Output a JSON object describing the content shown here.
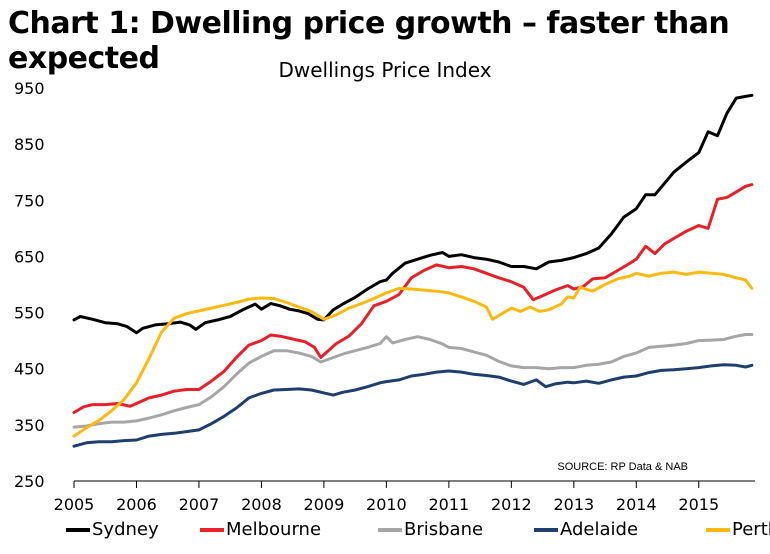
{
  "header": {
    "title": "Chart 1: Dwelling price growth – faster than expected"
  },
  "chart_data": {
    "type": "line",
    "title": "Dwellings Price Index",
    "source": "SOURCE: RP Data & NAB",
    "xlabel": "",
    "ylabel": "",
    "xlim": [
      2005,
      2015.9
    ],
    "ylim": [
      250,
      950
    ],
    "y_ticks": [
      "950",
      "850",
      "750",
      "650",
      "550",
      "450",
      "350",
      "250"
    ],
    "x_ticks": [
      "2005",
      "2006",
      "2007",
      "2008",
      "2009",
      "2010",
      "2011",
      "2012",
      "2013",
      "2014",
      "2015"
    ],
    "grid": false,
    "legend_position": "bottom",
    "series": [
      {
        "name": "Sydney",
        "color": "#000000",
        "points": [
          [
            2005.0,
            537
          ],
          [
            2005.1,
            543
          ],
          [
            2005.3,
            538
          ],
          [
            2005.5,
            532
          ],
          [
            2005.7,
            530
          ],
          [
            2005.85,
            525
          ],
          [
            2006.0,
            514
          ],
          [
            2006.1,
            522
          ],
          [
            2006.3,
            528
          ],
          [
            2006.5,
            530
          ],
          [
            2006.7,
            533
          ],
          [
            2006.85,
            528
          ],
          [
            2006.95,
            520
          ],
          [
            2007.1,
            532
          ],
          [
            2007.3,
            537
          ],
          [
            2007.5,
            543
          ],
          [
            2007.7,
            555
          ],
          [
            2007.9,
            565
          ],
          [
            2008.0,
            556
          ],
          [
            2008.15,
            566
          ],
          [
            2008.3,
            562
          ],
          [
            2008.45,
            556
          ],
          [
            2008.6,
            553
          ],
          [
            2008.75,
            548
          ],
          [
            2008.9,
            538
          ],
          [
            2009.0,
            537
          ],
          [
            2009.15,
            555
          ],
          [
            2009.3,
            565
          ],
          [
            2009.5,
            577
          ],
          [
            2009.7,
            592
          ],
          [
            2009.9,
            605
          ],
          [
            2010.0,
            608
          ],
          [
            2010.1,
            620
          ],
          [
            2010.3,
            638
          ],
          [
            2010.5,
            645
          ],
          [
            2010.7,
            652
          ],
          [
            2010.9,
            657
          ],
          [
            2011.0,
            650
          ],
          [
            2011.2,
            653
          ],
          [
            2011.4,
            648
          ],
          [
            2011.6,
            645
          ],
          [
            2011.8,
            640
          ],
          [
            2012.0,
            632
          ],
          [
            2012.2,
            632
          ],
          [
            2012.4,
            628
          ],
          [
            2012.6,
            640
          ],
          [
            2012.8,
            643
          ],
          [
            2013.0,
            648
          ],
          [
            2013.2,
            655
          ],
          [
            2013.4,
            665
          ],
          [
            2013.6,
            690
          ],
          [
            2013.8,
            720
          ],
          [
            2014.0,
            735
          ],
          [
            2014.15,
            760
          ],
          [
            2014.3,
            760
          ],
          [
            2014.45,
            780
          ],
          [
            2014.6,
            800
          ],
          [
            2014.8,
            818
          ],
          [
            2015.0,
            835
          ],
          [
            2015.15,
            872
          ],
          [
            2015.3,
            865
          ],
          [
            2015.45,
            905
          ],
          [
            2015.6,
            932
          ],
          [
            2015.75,
            935
          ],
          [
            2015.85,
            937
          ]
        ]
      },
      {
        "name": "Melbourne",
        "color": "#e8202a",
        "points": [
          [
            2005.0,
            372
          ],
          [
            2005.15,
            382
          ],
          [
            2005.3,
            386
          ],
          [
            2005.5,
            386
          ],
          [
            2005.7,
            388
          ],
          [
            2005.9,
            383
          ],
          [
            2006.0,
            388
          ],
          [
            2006.2,
            398
          ],
          [
            2006.4,
            403
          ],
          [
            2006.6,
            410
          ],
          [
            2006.8,
            413
          ],
          [
            2007.0,
            413
          ],
          [
            2007.2,
            428
          ],
          [
            2007.4,
            445
          ],
          [
            2007.6,
            470
          ],
          [
            2007.8,
            492
          ],
          [
            2008.0,
            500
          ],
          [
            2008.15,
            510
          ],
          [
            2008.3,
            508
          ],
          [
            2008.5,
            503
          ],
          [
            2008.7,
            498
          ],
          [
            2008.85,
            488
          ],
          [
            2008.95,
            470
          ],
          [
            2009.05,
            480
          ],
          [
            2009.2,
            495
          ],
          [
            2009.4,
            508
          ],
          [
            2009.6,
            530
          ],
          [
            2009.8,
            562
          ],
          [
            2010.0,
            570
          ],
          [
            2010.2,
            582
          ],
          [
            2010.4,
            612
          ],
          [
            2010.6,
            625
          ],
          [
            2010.8,
            635
          ],
          [
            2011.0,
            630
          ],
          [
            2011.2,
            632
          ],
          [
            2011.4,
            628
          ],
          [
            2011.6,
            620
          ],
          [
            2011.8,
            612
          ],
          [
            2012.0,
            605
          ],
          [
            2012.2,
            595
          ],
          [
            2012.35,
            573
          ],
          [
            2012.5,
            580
          ],
          [
            2012.7,
            590
          ],
          [
            2012.9,
            598
          ],
          [
            2013.0,
            592
          ],
          [
            2013.15,
            596
          ],
          [
            2013.3,
            610
          ],
          [
            2013.5,
            612
          ],
          [
            2013.7,
            625
          ],
          [
            2013.9,
            638
          ],
          [
            2014.0,
            645
          ],
          [
            2014.15,
            668
          ],
          [
            2014.3,
            655
          ],
          [
            2014.45,
            672
          ],
          [
            2014.6,
            682
          ],
          [
            2014.8,
            695
          ],
          [
            2015.0,
            705
          ],
          [
            2015.15,
            700
          ],
          [
            2015.3,
            752
          ],
          [
            2015.45,
            755
          ],
          [
            2015.6,
            765
          ],
          [
            2015.75,
            775
          ],
          [
            2015.85,
            778
          ]
        ]
      },
      {
        "name": "Brisbane",
        "color": "#a6a6a6",
        "points": [
          [
            2005.0,
            346
          ],
          [
            2005.2,
            348
          ],
          [
            2005.4,
            352
          ],
          [
            2005.6,
            355
          ],
          [
            2005.8,
            355
          ],
          [
            2006.0,
            357
          ],
          [
            2006.2,
            362
          ],
          [
            2006.4,
            368
          ],
          [
            2006.6,
            375
          ],
          [
            2006.8,
            381
          ],
          [
            2007.0,
            386
          ],
          [
            2007.2,
            400
          ],
          [
            2007.4,
            418
          ],
          [
            2007.6,
            440
          ],
          [
            2007.8,
            460
          ],
          [
            2008.0,
            472
          ],
          [
            2008.2,
            482
          ],
          [
            2008.4,
            482
          ],
          [
            2008.6,
            478
          ],
          [
            2008.8,
            472
          ],
          [
            2008.95,
            462
          ],
          [
            2009.1,
            468
          ],
          [
            2009.3,
            476
          ],
          [
            2009.5,
            482
          ],
          [
            2009.7,
            488
          ],
          [
            2009.9,
            495
          ],
          [
            2010.0,
            507
          ],
          [
            2010.1,
            496
          ],
          [
            2010.3,
            502
          ],
          [
            2010.5,
            507
          ],
          [
            2010.7,
            502
          ],
          [
            2010.9,
            494
          ],
          [
            2011.0,
            488
          ],
          [
            2011.2,
            486
          ],
          [
            2011.4,
            480
          ],
          [
            2011.6,
            474
          ],
          [
            2011.8,
            463
          ],
          [
            2012.0,
            455
          ],
          [
            2012.2,
            452
          ],
          [
            2012.4,
            452
          ],
          [
            2012.6,
            450
          ],
          [
            2012.8,
            452
          ],
          [
            2013.0,
            452
          ],
          [
            2013.2,
            456
          ],
          [
            2013.4,
            458
          ],
          [
            2013.6,
            462
          ],
          [
            2013.8,
            472
          ],
          [
            2014.0,
            478
          ],
          [
            2014.2,
            488
          ],
          [
            2014.4,
            490
          ],
          [
            2014.6,
            492
          ],
          [
            2014.8,
            495
          ],
          [
            2015.0,
            500
          ],
          [
            2015.2,
            501
          ],
          [
            2015.4,
            502
          ],
          [
            2015.6,
            508
          ],
          [
            2015.75,
            511
          ],
          [
            2015.85,
            511
          ]
        ]
      },
      {
        "name": "Adelaide",
        "color": "#1f3f6e",
        "points": [
          [
            2005.0,
            312
          ],
          [
            2005.2,
            318
          ],
          [
            2005.4,
            320
          ],
          [
            2005.6,
            320
          ],
          [
            2005.8,
            322
          ],
          [
            2006.0,
            323
          ],
          [
            2006.2,
            330
          ],
          [
            2006.4,
            333
          ],
          [
            2006.6,
            335
          ],
          [
            2006.8,
            338
          ],
          [
            2007.0,
            341
          ],
          [
            2007.2,
            352
          ],
          [
            2007.4,
            365
          ],
          [
            2007.6,
            380
          ],
          [
            2007.8,
            398
          ],
          [
            2008.0,
            406
          ],
          [
            2008.2,
            412
          ],
          [
            2008.4,
            413
          ],
          [
            2008.6,
            414
          ],
          [
            2008.8,
            412
          ],
          [
            2009.0,
            407
          ],
          [
            2009.15,
            403
          ],
          [
            2009.3,
            408
          ],
          [
            2009.5,
            412
          ],
          [
            2009.7,
            418
          ],
          [
            2009.9,
            425
          ],
          [
            2010.0,
            427
          ],
          [
            2010.2,
            430
          ],
          [
            2010.4,
            437
          ],
          [
            2010.6,
            440
          ],
          [
            2010.8,
            444
          ],
          [
            2011.0,
            446
          ],
          [
            2011.2,
            444
          ],
          [
            2011.4,
            440
          ],
          [
            2011.6,
            438
          ],
          [
            2011.8,
            435
          ],
          [
            2012.0,
            428
          ],
          [
            2012.2,
            422
          ],
          [
            2012.4,
            430
          ],
          [
            2012.55,
            418
          ],
          [
            2012.7,
            423
          ],
          [
            2012.9,
            426
          ],
          [
            2013.0,
            425
          ],
          [
            2013.2,
            428
          ],
          [
            2013.4,
            424
          ],
          [
            2013.6,
            430
          ],
          [
            2013.8,
            435
          ],
          [
            2014.0,
            437
          ],
          [
            2014.2,
            443
          ],
          [
            2014.4,
            447
          ],
          [
            2014.6,
            448
          ],
          [
            2014.8,
            450
          ],
          [
            2015.0,
            452
          ],
          [
            2015.2,
            455
          ],
          [
            2015.4,
            457
          ],
          [
            2015.6,
            456
          ],
          [
            2015.75,
            453
          ],
          [
            2015.85,
            456
          ]
        ]
      },
      {
        "name": "Perth",
        "color": "#fdb913",
        "points": [
          [
            2005.0,
            330
          ],
          [
            2005.2,
            345
          ],
          [
            2005.4,
            358
          ],
          [
            2005.6,
            375
          ],
          [
            2005.8,
            395
          ],
          [
            2006.0,
            425
          ],
          [
            2006.2,
            468
          ],
          [
            2006.4,
            515
          ],
          [
            2006.6,
            540
          ],
          [
            2006.8,
            548
          ],
          [
            2007.0,
            553
          ],
          [
            2007.2,
            558
          ],
          [
            2007.4,
            563
          ],
          [
            2007.6,
            568
          ],
          [
            2007.8,
            574
          ],
          [
            2008.0,
            576
          ],
          [
            2008.2,
            575
          ],
          [
            2008.4,
            568
          ],
          [
            2008.6,
            560
          ],
          [
            2008.8,
            552
          ],
          [
            2009.0,
            538
          ],
          [
            2009.2,
            546
          ],
          [
            2009.4,
            558
          ],
          [
            2009.6,
            566
          ],
          [
            2009.8,
            575
          ],
          [
            2010.0,
            585
          ],
          [
            2010.2,
            593
          ],
          [
            2010.4,
            592
          ],
          [
            2010.6,
            590
          ],
          [
            2010.8,
            588
          ],
          [
            2011.0,
            585
          ],
          [
            2011.2,
            578
          ],
          [
            2011.4,
            570
          ],
          [
            2011.6,
            560
          ],
          [
            2011.7,
            538
          ],
          [
            2011.85,
            548
          ],
          [
            2012.0,
            558
          ],
          [
            2012.15,
            552
          ],
          [
            2012.3,
            560
          ],
          [
            2012.45,
            552
          ],
          [
            2012.6,
            555
          ],
          [
            2012.8,
            565
          ],
          [
            2012.9,
            578
          ],
          [
            2013.0,
            576
          ],
          [
            2013.1,
            595
          ],
          [
            2013.3,
            588
          ],
          [
            2013.5,
            600
          ],
          [
            2013.7,
            610
          ],
          [
            2013.9,
            615
          ],
          [
            2014.0,
            620
          ],
          [
            2014.2,
            615
          ],
          [
            2014.4,
            620
          ],
          [
            2014.6,
            622
          ],
          [
            2014.8,
            618
          ],
          [
            2015.0,
            622
          ],
          [
            2015.2,
            620
          ],
          [
            2015.4,
            618
          ],
          [
            2015.6,
            612
          ],
          [
            2015.75,
            608
          ],
          [
            2015.85,
            593
          ]
        ]
      }
    ]
  }
}
